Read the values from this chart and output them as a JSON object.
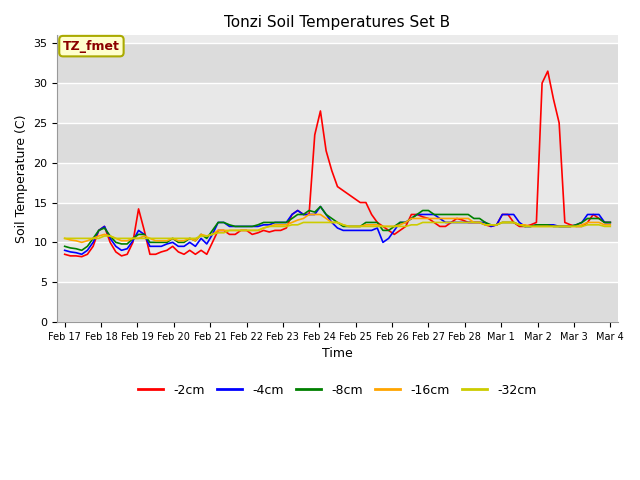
{
  "title": "Tonzi Soil Temperatures Set B",
  "xlabel": "Time",
  "ylabel": "Soil Temperature (C)",
  "ylim": [
    0,
    36
  ],
  "yticks": [
    0,
    5,
    10,
    15,
    20,
    25,
    30,
    35
  ],
  "annotation_text": "TZ_fmet",
  "annotation_color": "#8B0000",
  "annotation_bg": "#FFFFCC",
  "annotation_border": "#AAAA00",
  "plot_bg": "#E8E8E8",
  "band_color_light": "#DCDCDC",
  "band_color_dark": "#C8C8C8",
  "series_order": [
    "-2cm",
    "-4cm",
    "-8cm",
    "-16cm",
    "-32cm"
  ],
  "series": {
    "-2cm": {
      "color": "#FF0000",
      "lw": 1.2
    },
    "-4cm": {
      "color": "#0000FF",
      "lw": 1.2
    },
    "-8cm": {
      "color": "#008000",
      "lw": 1.2
    },
    "-16cm": {
      "color": "#FFA500",
      "lw": 1.2
    },
    "-32cm": {
      "color": "#CCCC00",
      "lw": 1.2
    }
  },
  "x_tick_labels": [
    "Feb 17",
    "Feb 18",
    "Feb 19",
    "Feb 20",
    "Feb 21",
    "Feb 22",
    "Feb 23",
    "Feb 24",
    "Feb 25",
    "Feb 26",
    "Feb 27",
    "Feb 28",
    "Mar 1",
    "Mar 2",
    "Mar 3",
    "Mar 4"
  ],
  "data": {
    "-2cm": [
      8.5,
      8.3,
      8.3,
      8.2,
      8.5,
      9.5,
      11.5,
      12.0,
      10.0,
      8.8,
      8.3,
      8.5,
      10.0,
      14.2,
      11.5,
      8.5,
      8.5,
      8.8,
      9.0,
      9.5,
      8.8,
      8.5,
      9.0,
      8.5,
      9.0,
      8.5,
      10.0,
      11.5,
      11.5,
      11.0,
      11.0,
      11.5,
      11.5,
      11.0,
      11.2,
      11.5,
      11.3,
      11.5,
      11.5,
      11.8,
      13.5,
      14.0,
      13.5,
      13.5,
      23.5,
      26.5,
      21.5,
      19.0,
      17.0,
      16.5,
      16.0,
      15.5,
      15.0,
      15.0,
      13.5,
      12.5,
      12.0,
      11.5,
      11.0,
      11.5,
      12.0,
      13.5,
      13.5,
      13.2,
      13.0,
      12.5,
      12.0,
      12.0,
      12.5,
      13.0,
      12.8,
      12.5,
      12.5,
      12.5,
      12.2,
      12.0,
      12.2,
      13.5,
      13.5,
      12.5,
      12.0,
      12.0,
      12.2,
      12.5,
      30.0,
      31.5,
      28.0,
      25.0,
      12.5,
      12.2,
      12.0,
      12.0,
      12.5,
      13.5,
      13.0,
      12.5,
      12.5
    ],
    "-4cm": [
      9.0,
      8.8,
      8.7,
      8.5,
      9.0,
      10.0,
      11.5,
      12.0,
      10.5,
      9.5,
      9.0,
      9.2,
      10.2,
      11.5,
      11.0,
      9.5,
      9.5,
      9.5,
      9.8,
      10.0,
      9.5,
      9.5,
      10.0,
      9.5,
      10.5,
      9.8,
      11.0,
      12.5,
      12.5,
      12.0,
      12.0,
      12.0,
      12.0,
      12.0,
      12.0,
      12.2,
      12.2,
      12.5,
      12.5,
      12.5,
      13.5,
      14.0,
      13.5,
      13.5,
      13.5,
      14.5,
      13.5,
      12.5,
      11.8,
      11.5,
      11.5,
      11.5,
      11.5,
      11.5,
      11.5,
      11.8,
      10.0,
      10.5,
      11.5,
      12.5,
      12.5,
      13.0,
      13.5,
      13.5,
      13.5,
      13.5,
      13.0,
      12.5,
      12.5,
      12.5,
      12.5,
      12.5,
      12.5,
      12.5,
      12.5,
      12.0,
      12.2,
      13.5,
      13.5,
      13.5,
      12.5,
      12.0,
      12.0,
      12.2,
      12.2,
      12.2,
      12.2,
      12.0,
      12.0,
      12.0,
      12.2,
      12.5,
      13.5,
      13.5,
      13.5,
      12.5,
      12.5
    ],
    "-8cm": [
      9.5,
      9.3,
      9.2,
      9.0,
      9.5,
      10.5,
      11.5,
      11.8,
      10.8,
      10.0,
      9.8,
      9.8,
      10.5,
      11.0,
      11.0,
      10.0,
      10.0,
      10.0,
      10.0,
      10.5,
      10.0,
      10.0,
      10.5,
      10.2,
      11.0,
      10.5,
      11.5,
      12.5,
      12.5,
      12.2,
      12.0,
      12.0,
      12.0,
      12.0,
      12.2,
      12.5,
      12.5,
      12.5,
      12.5,
      12.5,
      13.0,
      13.5,
      13.5,
      14.0,
      13.8,
      14.5,
      13.5,
      13.0,
      12.5,
      12.0,
      12.0,
      12.0,
      12.0,
      12.5,
      12.5,
      12.5,
      11.5,
      11.5,
      12.0,
      12.5,
      12.5,
      13.0,
      13.5,
      14.0,
      14.0,
      13.5,
      13.5,
      13.5,
      13.5,
      13.5,
      13.5,
      13.5,
      13.0,
      13.0,
      12.5,
      12.2,
      12.2,
      12.5,
      12.5,
      12.5,
      12.2,
      12.0,
      12.0,
      12.2,
      12.2,
      12.2,
      12.0,
      12.0,
      12.0,
      12.0,
      12.2,
      12.5,
      13.0,
      13.0,
      13.0,
      12.5,
      12.5
    ],
    "-16cm": [
      10.5,
      10.3,
      10.2,
      10.0,
      10.2,
      10.5,
      10.8,
      11.0,
      10.8,
      10.5,
      10.2,
      10.2,
      10.5,
      10.5,
      10.8,
      10.5,
      10.2,
      10.2,
      10.2,
      10.5,
      10.2,
      10.2,
      10.5,
      10.2,
      11.0,
      10.8,
      11.0,
      11.5,
      11.5,
      11.5,
      11.5,
      11.5,
      11.5,
      11.5,
      11.5,
      11.8,
      12.0,
      12.2,
      12.2,
      12.2,
      12.5,
      12.8,
      13.0,
      13.5,
      13.5,
      13.5,
      13.0,
      12.5,
      12.5,
      12.2,
      12.0,
      12.0,
      12.0,
      12.2,
      12.2,
      12.2,
      12.0,
      12.0,
      12.0,
      12.2,
      12.5,
      13.0,
      13.0,
      13.0,
      13.0,
      13.0,
      13.0,
      13.0,
      13.0,
      13.0,
      13.0,
      13.0,
      12.5,
      12.5,
      12.2,
      12.2,
      12.2,
      12.5,
      12.5,
      12.5,
      12.2,
      12.2,
      12.0,
      12.0,
      12.0,
      12.0,
      12.0,
      12.0,
      12.0,
      12.0,
      12.0,
      12.2,
      12.5,
      12.5,
      12.5,
      12.2,
      12.2
    ],
    "-32cm": [
      10.5,
      10.5,
      10.5,
      10.5,
      10.5,
      10.5,
      10.5,
      10.8,
      10.8,
      10.5,
      10.5,
      10.5,
      10.5,
      10.5,
      10.5,
      10.5,
      10.5,
      10.5,
      10.5,
      10.5,
      10.5,
      10.5,
      10.5,
      10.5,
      10.8,
      10.8,
      11.0,
      11.2,
      11.2,
      11.5,
      11.5,
      11.5,
      11.5,
      11.5,
      11.5,
      11.8,
      12.0,
      12.0,
      12.0,
      12.0,
      12.2,
      12.2,
      12.5,
      12.5,
      12.5,
      12.5,
      12.5,
      12.5,
      12.5,
      12.2,
      12.0,
      12.0,
      12.0,
      12.0,
      12.0,
      12.0,
      12.0,
      12.0,
      12.0,
      12.0,
      12.0,
      12.2,
      12.2,
      12.5,
      12.5,
      12.5,
      12.5,
      12.5,
      12.5,
      12.5,
      12.5,
      12.5,
      12.5,
      12.5,
      12.2,
      12.2,
      12.2,
      12.5,
      12.5,
      12.5,
      12.2,
      12.0,
      12.0,
      12.0,
      12.0,
      12.0,
      12.0,
      12.0,
      12.0,
      12.0,
      12.0,
      12.0,
      12.2,
      12.2,
      12.2,
      12.0,
      12.0
    ]
  }
}
